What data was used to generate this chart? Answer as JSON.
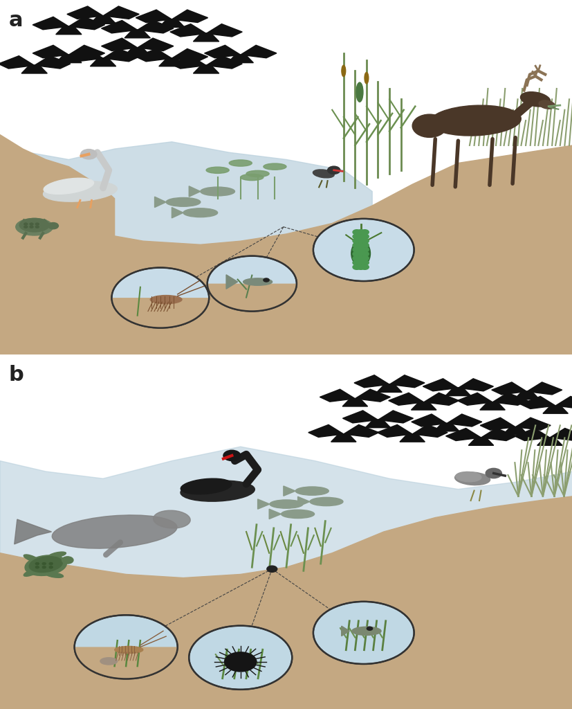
{
  "fig_width": 8.28,
  "fig_height": 10.24,
  "bg_color": "#ffffff",
  "panel_a_label": "a",
  "panel_b_label": "b",
  "ground_color": "#C4A882",
  "water_color_a": "#B8CFDC",
  "water_color_b": "#B8CFDC",
  "bird_color": "#111111",
  "moose_color": "#4A3728",
  "circle_bg_a": "#C8DCE8",
  "circle_bg_b": "#C0D8E4",
  "plant_color": "#7A9E6F",
  "cattail_brown": "#8B6914",
  "green_plant": "#5A8050"
}
